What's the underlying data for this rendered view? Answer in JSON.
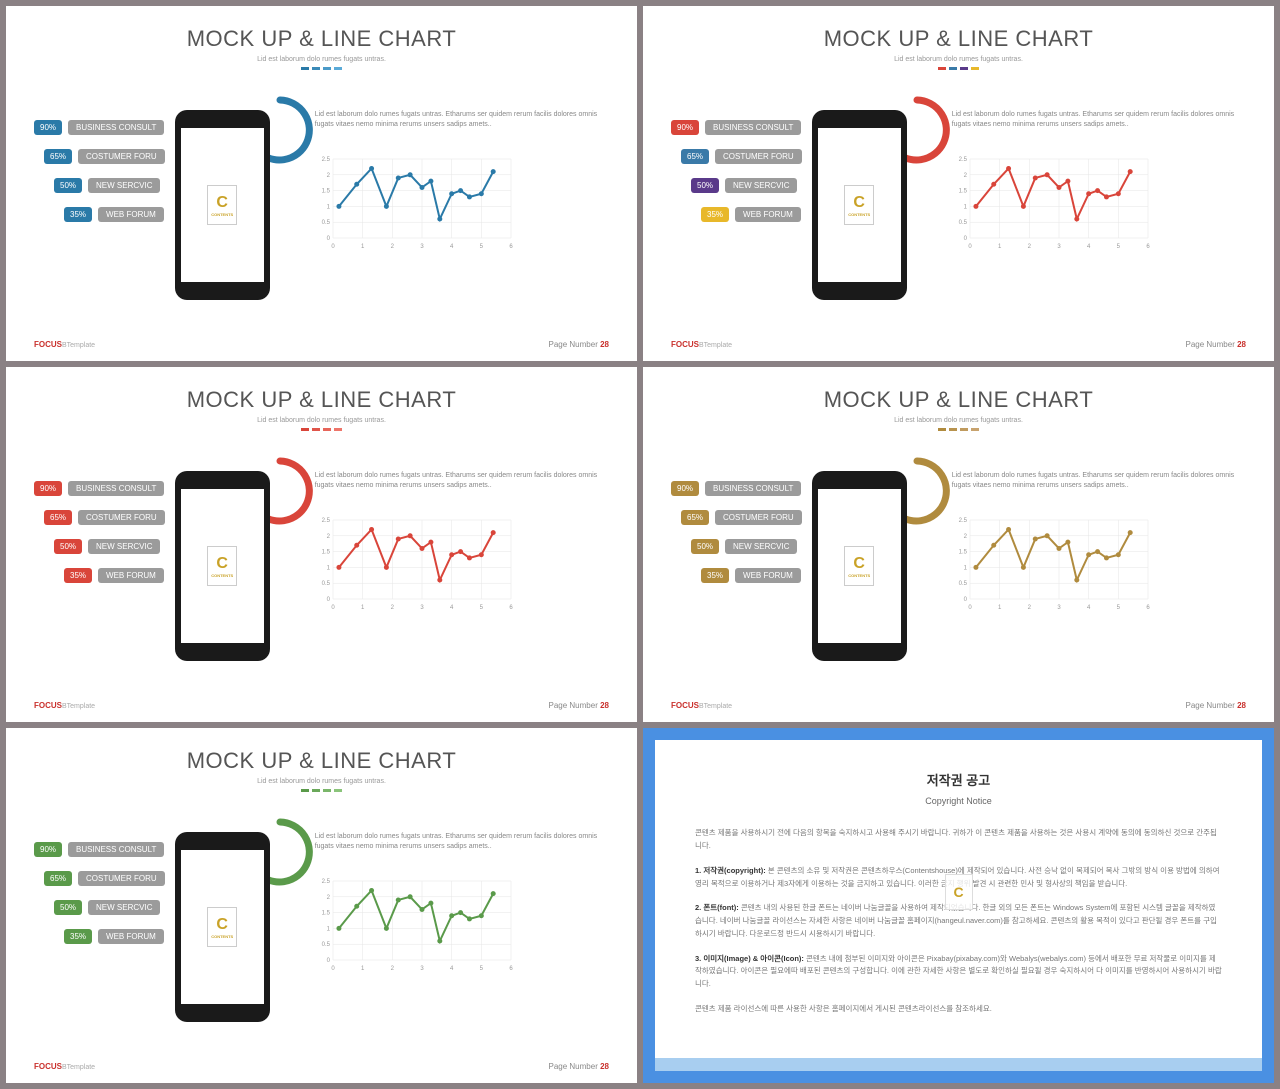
{
  "slide": {
    "title": "MOCK UP & LINE CHART",
    "subtitle": "Lid est laborum dolo rumes fugats untras.",
    "desc": "Lid est laborum dolo rumes fugats untras. Etharums ser quidem rerum facilis dolores omnis fugats vitaes nemo minima rerums unsers sadips amets..",
    "badges": [
      {
        "pct": "90%",
        "label": "BUSINESS CONSULT"
      },
      {
        "pct": "65%",
        "label": "COSTUMER FORU"
      },
      {
        "pct": "50%",
        "label": "NEW SERCVIC"
      },
      {
        "pct": "35%",
        "label": "WEB FORUM"
      }
    ],
    "logo": "C",
    "logo_sub": "CONTENTS",
    "footer_brand": "FOCUS",
    "footer_tmpl": "BTemplate",
    "footer_pg": "Page Number",
    "footer_num": "28"
  },
  "chart": {
    "xlim": [
      0,
      6
    ],
    "ylim": [
      0,
      2.5
    ],
    "xticks": [
      0,
      1,
      2,
      3,
      4,
      5,
      6
    ],
    "yticks": [
      0,
      0.5,
      1,
      1.5,
      2,
      2.5
    ],
    "grid_color": "#e5e5e5",
    "axis_color": "#bbb",
    "tick_fontsize": 6,
    "line_width": 2,
    "marker_radius": 2.5,
    "points": [
      [
        0.2,
        1.0
      ],
      [
        0.8,
        1.7
      ],
      [
        1.3,
        2.2
      ],
      [
        1.8,
        1.0
      ],
      [
        2.2,
        1.9
      ],
      [
        2.6,
        2.0
      ],
      [
        3.0,
        1.6
      ],
      [
        3.3,
        1.8
      ],
      [
        3.6,
        0.6
      ],
      [
        4.0,
        1.4
      ],
      [
        4.3,
        1.5
      ],
      [
        4.6,
        1.3
      ],
      [
        5.0,
        1.4
      ],
      [
        5.4,
        2.1
      ]
    ]
  },
  "variants": [
    {
      "accent": "#2a7aa8",
      "badge_colors": [
        "#2a7aa8",
        "#2a7aa8",
        "#2a7aa8",
        "#2a7aa8"
      ],
      "divider_colors": [
        "#2a7aa8",
        "#3a8ab8",
        "#4a9ac8",
        "#5aaad8"
      ],
      "arc_color": "#2a7aa8",
      "line_color": "#2a7aa8"
    },
    {
      "accent": "#d9453a",
      "badge_colors": [
        "#d9453a",
        "#3a7aa8",
        "#5a3a8a",
        "#e8b82a"
      ],
      "divider_colors": [
        "#d9453a",
        "#3a7aa8",
        "#5a3a8a",
        "#e8b82a"
      ],
      "arc_color": "#d9453a",
      "line_color": "#d9453a"
    },
    {
      "accent": "#d9453a",
      "badge_colors": [
        "#d9453a",
        "#d9453a",
        "#d9453a",
        "#d9453a"
      ],
      "divider_colors": [
        "#d9453a",
        "#e0554a",
        "#e7655a",
        "#ee756a"
      ],
      "arc_color": "#d9453a",
      "line_color": "#d9453a"
    },
    {
      "accent": "#b08b3e",
      "badge_colors": [
        "#b08b3e",
        "#b08b3e",
        "#b08b3e",
        "#b08b3e"
      ],
      "divider_colors": [
        "#b08b3e",
        "#b8934e",
        "#c09b5e",
        "#c8a36e"
      ],
      "arc_color": "#b08b3e",
      "line_color": "#b08b3e"
    },
    {
      "accent": "#5a9a4a",
      "badge_colors": [
        "#5a9a4a",
        "#5a9a4a",
        "#5a9a4a",
        "#5a9a4a"
      ],
      "divider_colors": [
        "#5a9a4a",
        "#6aa85a",
        "#7ab66a",
        "#8ac47a"
      ],
      "arc_color": "#5a9a4a",
      "line_color": "#5a9a4a"
    }
  ],
  "copyright": {
    "title": "저작권 공고",
    "subtitle": "Copyright Notice",
    "p0": "콘텐츠 제품을 사용하시기 전에 다음의 항목을 숙지하시고 사용해 주시기 바랍니다. 귀하가 이 콘텐츠 제품을 사용하는 것은 사용시 계약에 동의에 동의하신 것으로 간주됩니다.",
    "p1_h": "1. 저작권(copyright):",
    "p1": " 본 콘텐츠의 소유 및 저작권은 콘텐츠하우스(Contentshouse)에 제작되어 있습니다. 사전 승낙 없이 복제되어 복사 그밖의 방식 이용 방법에 의하여 영리 목적으로 이용하거나 제3자에게 이용하는 것을 금지하고 있습니다. 이러한 금지 행위 발견 시 관련한 민사 및 형사상의 책임을 받습니다.",
    "p2_h": "2. 폰트(font):",
    "p2": " 콘텐츠 내의 사용된 한글 폰트는 네이버 나눔글꼴을 사용하여 제작되었습니다. 한글 외의 모든 폰트는 Windows System에 포함된 시스템 글꼴을 제작하였습니다. 네이버 나눔글꼴 라이선스는 자세한 사항은 네이버 나눔글꼴 홈페이지(hangeul.naver.com)를 참고하세요. 콘텐츠의 활용 목적이 있다고 판단될 경우 폰트를 구입하시기 바랍니다. 다운로드정 반드시 시용하시기 바랍니다.",
    "p3_h": "3. 이미지(Image) & 아이콘(Icon):",
    "p3": " 콘텐츠 내에 첨부된 이미지와 아이콘은 Pixabay(pixabay.com)와 Webalys(webalys.com) 등에서 배포한 무료 저작물로 이미지를 제작하였습니다. 아이콘은 필요에따 배포된 콘텐츠의 구성합니다. 이에 관한 자세한 사항은 별도로 확인하실 필요될 경우 숙지하시어 다 이미지를 반영하시어 사용하시기 바랍니다.",
    "p4": "콘텐츠 제품 라이선스에 따른 사용한 사항은 홈페이지에서 게시된 콘텐츠라이선스를 참조하세요."
  }
}
